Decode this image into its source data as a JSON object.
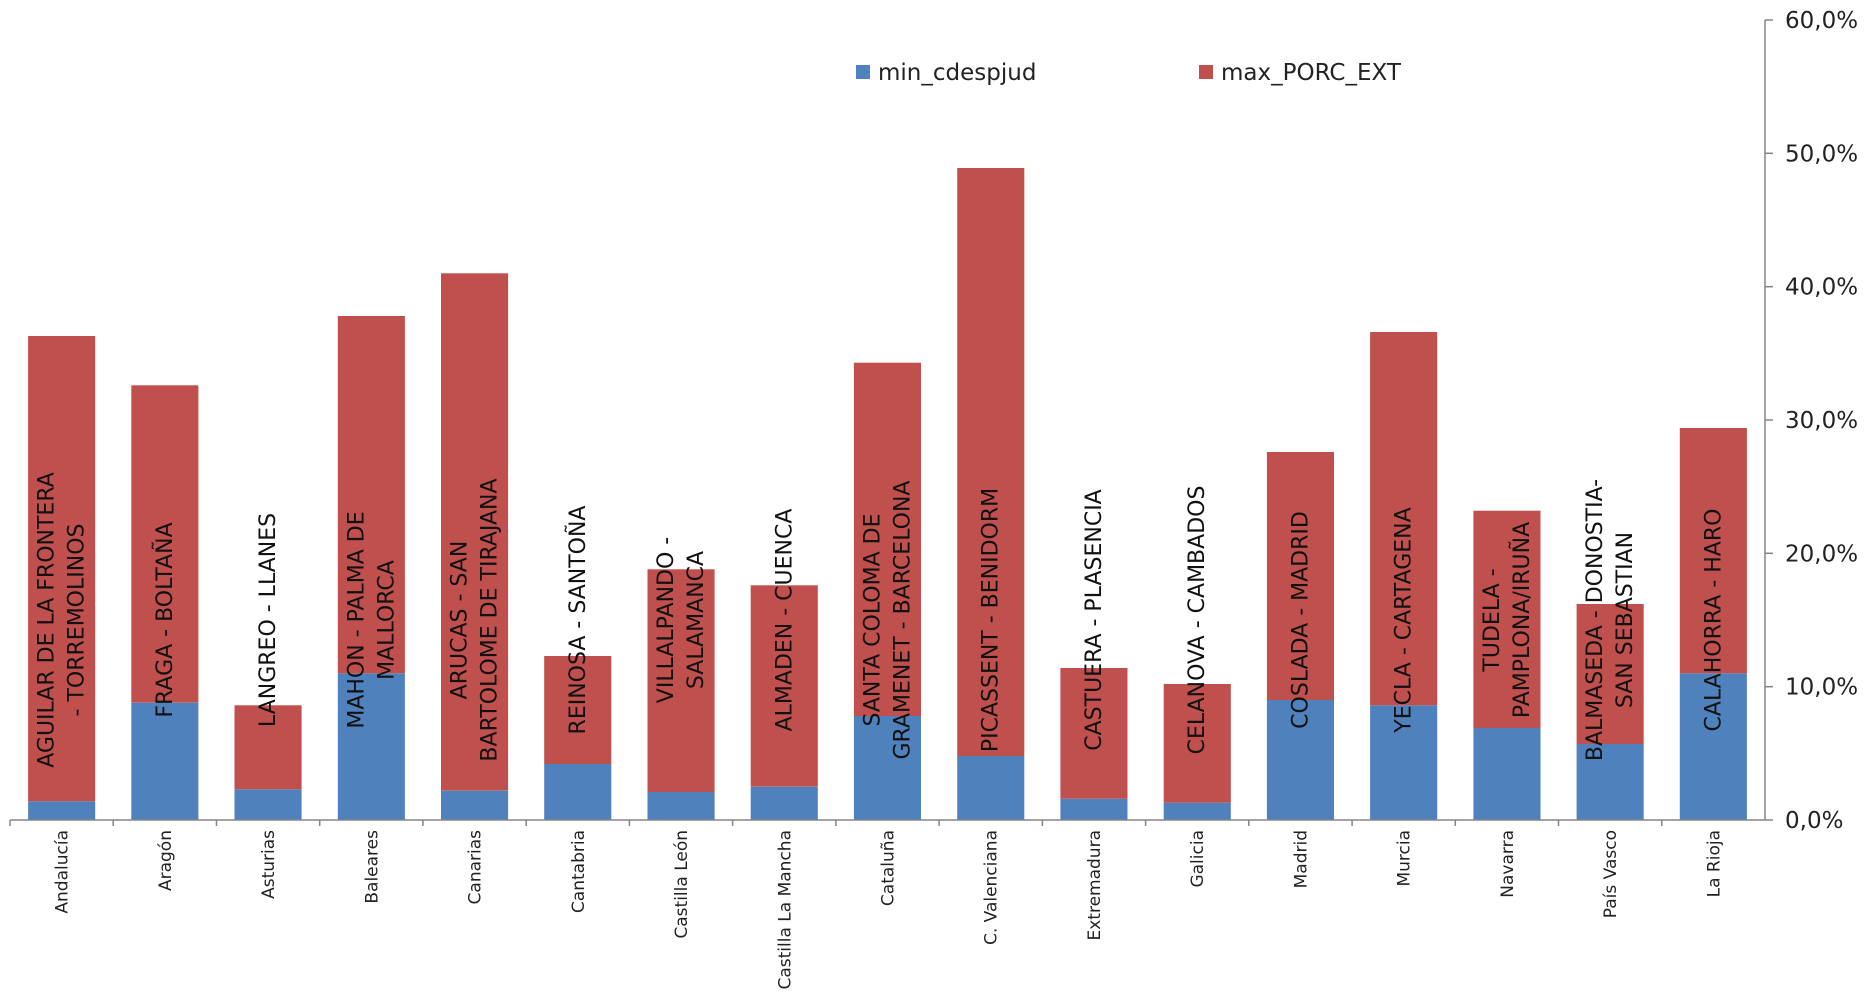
{
  "chart_data": {
    "type": "bar",
    "stacked": true,
    "title": "",
    "xlabel": "",
    "ylabel": "",
    "y_axis_side": "right",
    "ylim": [
      0,
      60
    ],
    "yticks": [
      0,
      10,
      20,
      30,
      40,
      50,
      60
    ],
    "ytick_labels": [
      "0,0%",
      "10,0%",
      "20,0%",
      "30,0%",
      "40,0%",
      "50,0%",
      "60,0%"
    ],
    "grid": false,
    "legend_position": "top-center",
    "categories": [
      "Andalucía",
      "Aragón",
      "Asturias",
      "Baleares",
      "Canarias",
      "Cantabria",
      "Castilla León",
      "Castilla La Mancha",
      "Cataluña",
      "C. Valenciana",
      "Extremadura",
      "Galicia",
      "Madrid",
      "Murcia",
      "Navarra",
      "País Vasco",
      "La Rioja"
    ],
    "series": [
      {
        "name": "min_cdespjud",
        "color": "#4f81bd",
        "values": [
          1.4,
          8.8,
          2.3,
          11.0,
          2.2,
          4.2,
          2.1,
          2.5,
          7.8,
          4.8,
          1.6,
          1.3,
          9.0,
          8.6,
          6.9,
          5.7,
          11.0
        ]
      },
      {
        "name": "max_PORC_EXT",
        "color": "#c0504d",
        "values": [
          34.9,
          23.8,
          6.3,
          26.8,
          38.8,
          8.1,
          16.7,
          15.1,
          26.5,
          44.1,
          9.8,
          8.9,
          18.6,
          28.0,
          16.3,
          10.5,
          18.4
        ]
      }
    ],
    "bar_labels": [
      [
        "AGUILAR DE LA FRONTERA",
        "- TORREMOLINOS"
      ],
      [
        "FRAGA   - BOLTAÑA"
      ],
      [
        "LANGREO   - LLANES"
      ],
      [
        "MAHON   - PALMA DE",
        "MALLORCA"
      ],
      [
        "ARUCAS   - SAN",
        "BARTOLOME DE TIRAJANA"
      ],
      [
        "REINOSA   - SANTOÑA"
      ],
      [
        "VILLALPANDO   -",
        "SALAMANCA"
      ],
      [
        "ALMADEN   - CUENCA"
      ],
      [
        "SANTA COLOMA DE",
        "GRAMENET   - BARCELONA"
      ],
      [
        "PICASSENT   - BENIDORM"
      ],
      [
        "CASTUERA   - PLASENCIA"
      ],
      [
        "CELANOVA   - CAMBADOS"
      ],
      [
        "COSLADA   - MADRID"
      ],
      [
        "YECLA   - CARTAGENA"
      ],
      [
        "TUDELA   -",
        "PAMPLONA/IRUÑA"
      ],
      [
        "BALMASEDA   - DONOSTIA-",
        "SAN SEBASTIAN"
      ],
      [
        "CALAHORRA   - HARO"
      ]
    ]
  }
}
